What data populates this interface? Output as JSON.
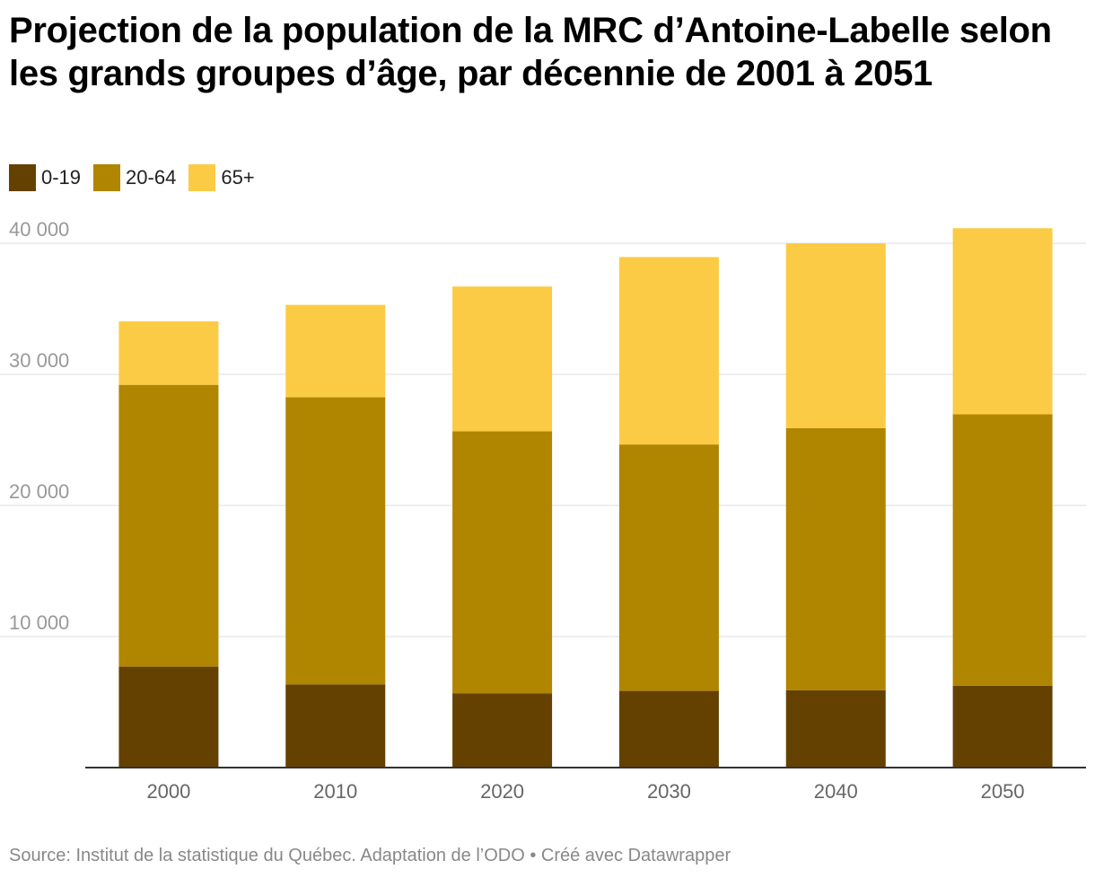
{
  "title": "Projection de la population de la MRC d’Antoine-Labelle selon les grands groupes d’âge, par décennie de 2001 à 2051",
  "source": "Source: Institut de la statistique du Québec. Adaptation de l’ODO • Créé avec Datawrapper",
  "legend": [
    {
      "label": "0-19",
      "color": "#644100"
    },
    {
      "label": "20-64",
      "color": "#b08500"
    },
    {
      "label": "65+",
      "color": "#fccb45"
    }
  ],
  "chart_data": {
    "type": "bar",
    "stacked": true,
    "categories": [
      "2000",
      "2010",
      "2020",
      "2030",
      "2040",
      "2050"
    ],
    "series": [
      {
        "name": "0-19",
        "color": "#644100",
        "values": [
          7700,
          6350,
          5650,
          5850,
          5900,
          6250
        ]
      },
      {
        "name": "20-64",
        "color": "#b08500",
        "values": [
          21500,
          21900,
          20000,
          18800,
          20000,
          20700
        ]
      },
      {
        "name": "65+",
        "color": "#fccb45",
        "values": [
          4850,
          7050,
          11050,
          14300,
          14100,
          14200
        ]
      }
    ],
    "yticks": [
      10000,
      20000,
      30000,
      40000
    ],
    "ytick_labels": [
      "10 000",
      "20 000",
      "30 000",
      "40 000"
    ],
    "ylim": [
      0,
      40000
    ],
    "grid": true,
    "legend_position": "top-left"
  }
}
